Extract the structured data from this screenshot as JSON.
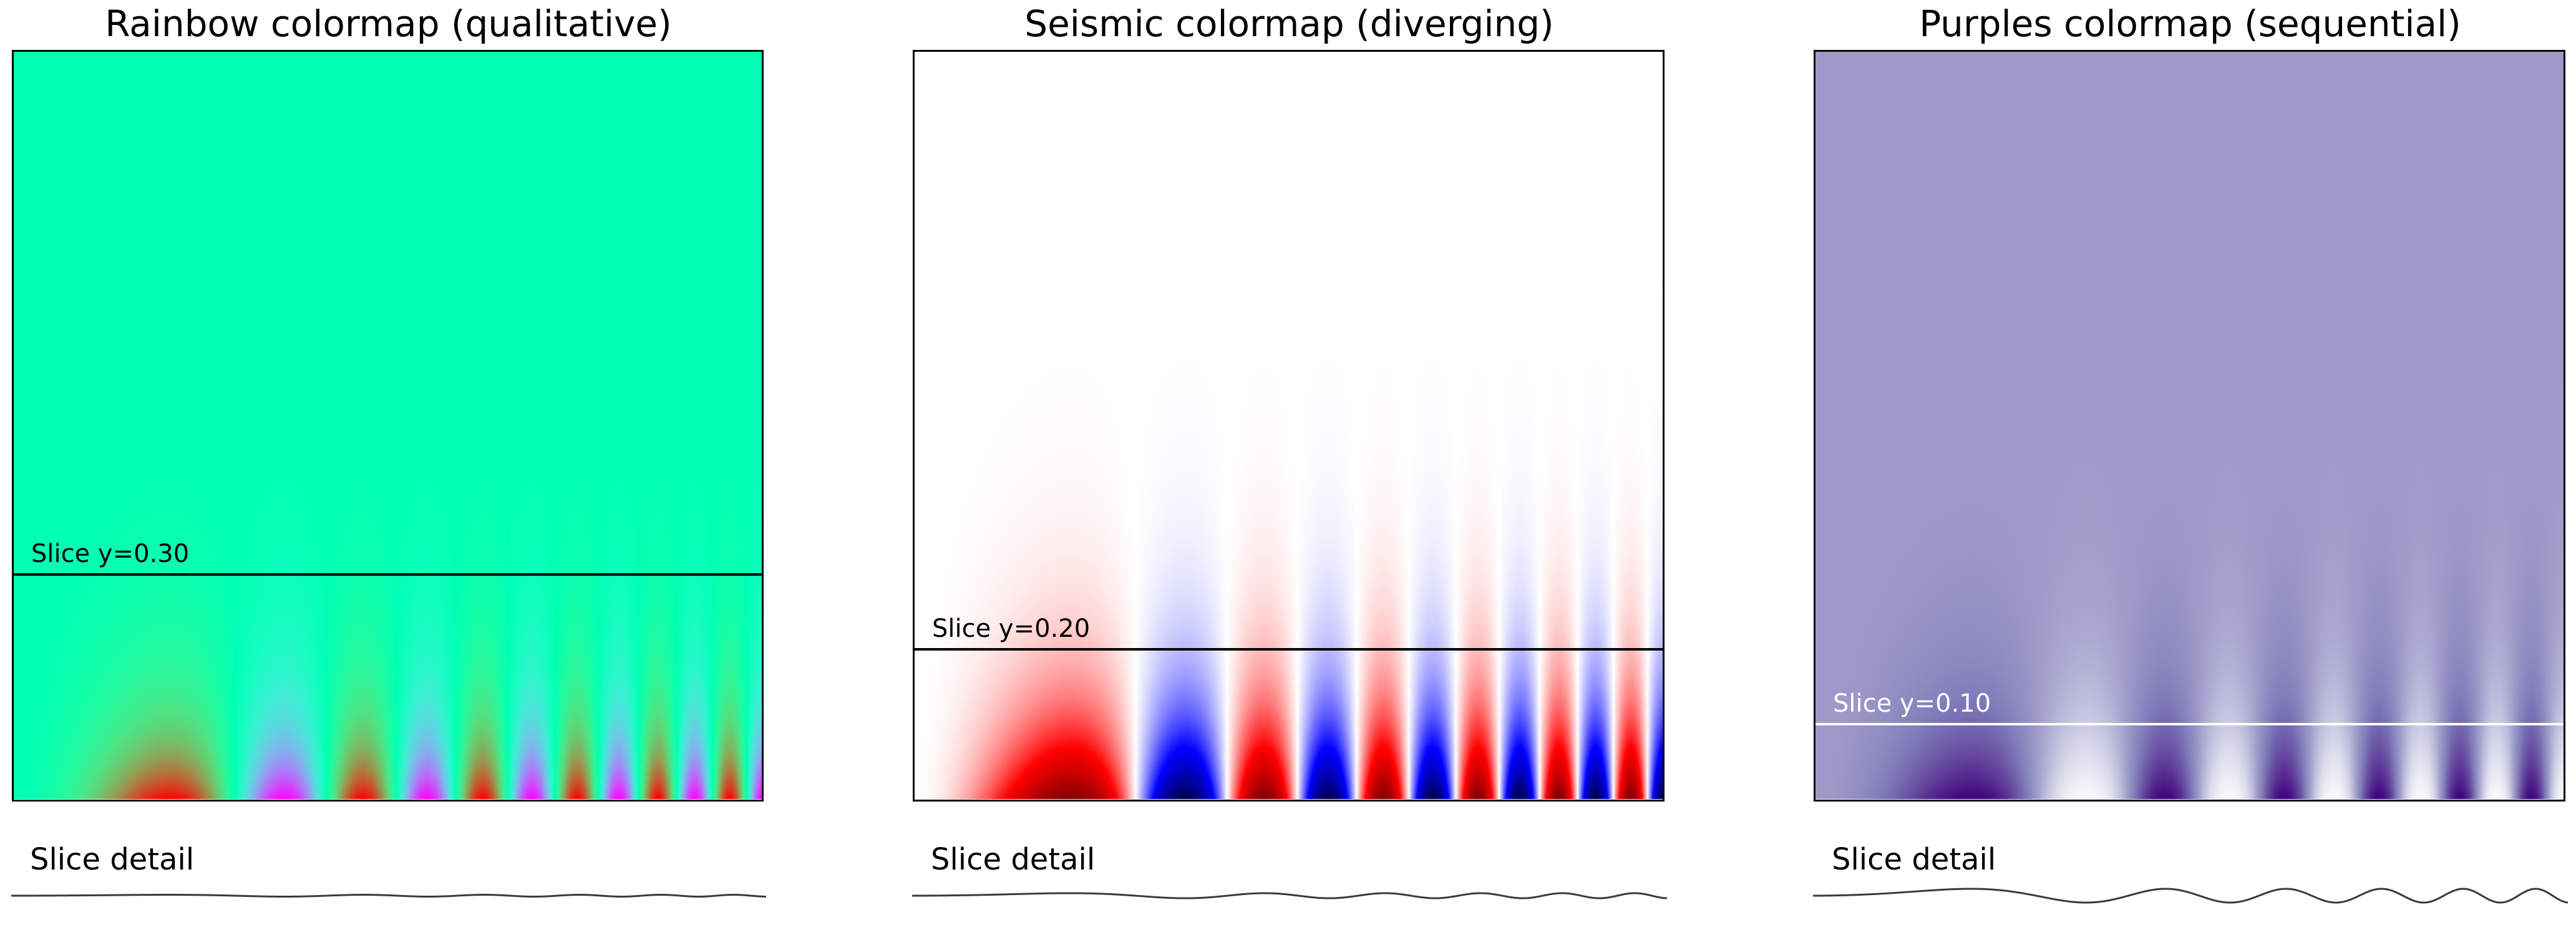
{
  "panels": [
    {
      "title": "Rainbow colormap (qualitative)",
      "colormap": "rainbow",
      "slice_label": "Slice y=0.30",
      "slice_y": 0.3,
      "slice_line_color": "#000000",
      "slice_label_color": "#000000",
      "detail_label": "Slice detail"
    },
    {
      "title": "Seismic colormap (diverging)",
      "colormap": "seismic",
      "slice_label": "Slice y=0.20",
      "slice_y": 0.2,
      "slice_line_color": "#000000",
      "slice_label_color": "#000000",
      "detail_label": "Slice detail"
    },
    {
      "title": "Purples colormap (sequential)",
      "colormap": "purples",
      "slice_label": "Slice y=0.10",
      "slice_y": 0.1,
      "slice_line_color": "#ffffff",
      "slice_label_color": "#ffffff",
      "detail_label": "Slice detail"
    }
  ],
  "chart_data": [
    {
      "type": "heatmap",
      "title": "Rainbow colormap (qualitative)",
      "colormap": "rainbow",
      "function": "sin(x^2) * exp(-y / 0.1)",
      "xlim": [
        0,
        6
      ],
      "ylim": [
        0,
        1
      ],
      "clim": [
        -1,
        1
      ],
      "slice_y": 0.3,
      "annotation": "Slice y=0.30",
      "axes_visible": false
    },
    {
      "type": "heatmap",
      "title": "Seismic colormap (diverging)",
      "colormap": "seismic",
      "function": "sin(x^2) * exp(-y / 0.1)",
      "xlim": [
        0,
        6
      ],
      "ylim": [
        0,
        1
      ],
      "clim": [
        -1,
        1
      ],
      "slice_y": 0.2,
      "annotation": "Slice y=0.20",
      "axes_visible": false
    },
    {
      "type": "heatmap",
      "title": "Purples colormap (sequential)",
      "colormap": "purples",
      "function": "sin(x^2) * exp(-y / 0.1)",
      "xlim": [
        0,
        6
      ],
      "ylim": [
        0,
        1
      ],
      "clim": [
        -1,
        1
      ],
      "slice_y": 0.1,
      "annotation": "Slice y=0.10",
      "axes_visible": false
    },
    {
      "type": "line",
      "title": "Slice detail",
      "function": "sin(x^2) * exp(-y / 0.1)",
      "slice_y": 0.3,
      "xlim": [
        0,
        6
      ],
      "ylim": [
        -1,
        1
      ]
    },
    {
      "type": "line",
      "title": "Slice detail",
      "function": "sin(x^2) * exp(-y / 0.1)",
      "slice_y": 0.2,
      "xlim": [
        0,
        6
      ],
      "ylim": [
        -1,
        1
      ]
    },
    {
      "type": "line",
      "title": "Slice detail",
      "function": "sin(x^2) * exp(-y / 0.1)",
      "slice_y": 0.1,
      "xlim": [
        0,
        6
      ],
      "ylim": [
        -1,
        1
      ]
    }
  ]
}
